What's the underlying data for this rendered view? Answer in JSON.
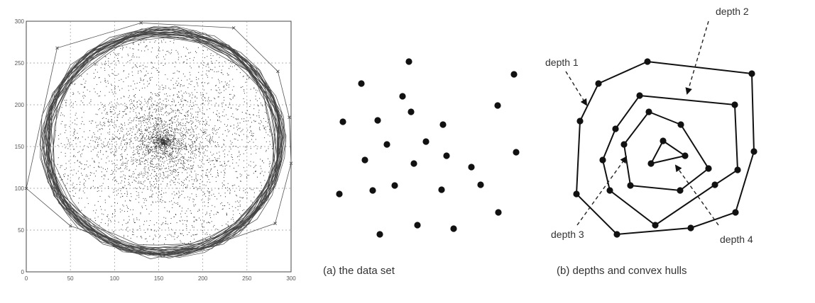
{
  "scatter_plot": {
    "xlim": [
      0,
      300
    ],
    "ylim": [
      0,
      300
    ],
    "x_ticks": [
      "0",
      "50",
      "100",
      "150",
      "200",
      "250",
      "300"
    ],
    "y_ticks": [
      "0",
      "50",
      "100",
      "150",
      "200",
      "250",
      "300"
    ],
    "grid": true,
    "grid_style": "dashed",
    "center": [
      155,
      155
    ],
    "circle_radius": 125,
    "outer_hull_points": [
      [
        0,
        100
      ],
      [
        35,
        268
      ],
      [
        130,
        298
      ],
      [
        235,
        292
      ],
      [
        285,
        240
      ],
      [
        298,
        185
      ],
      [
        300,
        130
      ],
      [
        282,
        58
      ],
      [
        200,
        28
      ],
      [
        120,
        30
      ],
      [
        50,
        55
      ]
    ]
  },
  "data_set_points": [
    [
      576,
      87
    ],
    [
      724,
      105
    ],
    [
      509,
      118
    ],
    [
      567,
      136
    ],
    [
      701,
      149
    ],
    [
      579,
      158
    ],
    [
      483,
      172
    ],
    [
      532,
      170
    ],
    [
      624,
      176
    ],
    [
      545,
      204
    ],
    [
      600,
      200
    ],
    [
      727,
      215
    ],
    [
      514,
      226
    ],
    [
      629,
      220
    ],
    [
      583,
      231
    ],
    [
      664,
      236
    ],
    [
      556,
      262
    ],
    [
      525,
      269
    ],
    [
      677,
      261
    ],
    [
      622,
      268
    ],
    [
      478,
      274
    ],
    [
      702,
      300
    ],
    [
      588,
      318
    ],
    [
      639,
      323
    ],
    [
      535,
      331
    ]
  ],
  "hulls": [
    {
      "depth": 1,
      "points": [
        [
          912,
          87
        ],
        [
          1059,
          104
        ],
        [
          1062,
          214
        ],
        [
          1036,
          300
        ],
        [
          973,
          322
        ],
        [
          869,
          331
        ],
        [
          812,
          274
        ],
        [
          817,
          171
        ],
        [
          843,
          118
        ]
      ]
    },
    {
      "depth": 2,
      "points": [
        [
          901,
          135
        ],
        [
          1035,
          148
        ],
        [
          1039,
          240
        ],
        [
          1007,
          261
        ],
        [
          923,
          318
        ],
        [
          859,
          269
        ],
        [
          849,
          226
        ],
        [
          867,
          182
        ]
      ]
    },
    {
      "depth": 3,
      "points": [
        [
          914,
          158
        ],
        [
          959,
          176
        ],
        [
          998,
          238
        ],
        [
          958,
          269
        ],
        [
          888,
          262
        ],
        [
          879,
          204
        ]
      ]
    },
    {
      "depth": 4,
      "points": [
        [
          934,
          199
        ],
        [
          965,
          220
        ],
        [
          917,
          231
        ]
      ]
    }
  ],
  "captions": {
    "a": "(a) the data set",
    "b": "(b) depths and convex hulls"
  },
  "depth_labels": {
    "d1": "depth 1",
    "d2": "depth 2",
    "d3": "depth 3",
    "d4": "depth 4"
  }
}
